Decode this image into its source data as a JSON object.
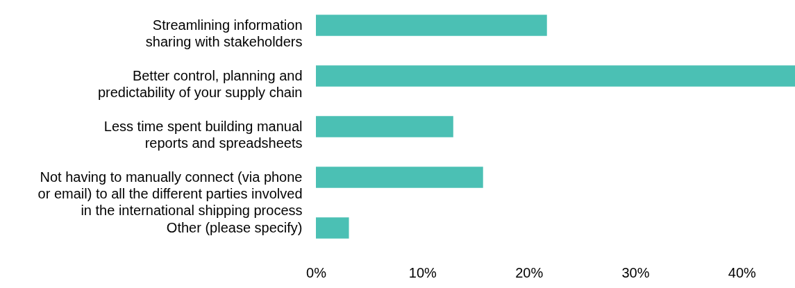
{
  "chart_data": {
    "type": "bar",
    "orientation": "horizontal",
    "categories": [
      "Streamlining information\nsharing with stakeholders",
      "Better control, planning and\npredictability of your supply chain",
      "Less time spent building manual\nreports and spreadsheets",
      "Not having to manually connect (via phone\nor email) to all the different parties involved\nin the international shipping process",
      "Other (please specify)"
    ],
    "values": [
      21.7,
      45,
      12.9,
      15.7,
      3.1
    ],
    "color": "#4bc0b4",
    "xlim": [
      0,
      45
    ],
    "xticks": [
      {
        "value": 0,
        "label": "0%"
      },
      {
        "value": 10,
        "label": "10%"
      },
      {
        "value": 20,
        "label": "20%"
      },
      {
        "value": 30,
        "label": "30%"
      },
      {
        "value": 40,
        "label": "40%"
      }
    ],
    "grid": false
  }
}
